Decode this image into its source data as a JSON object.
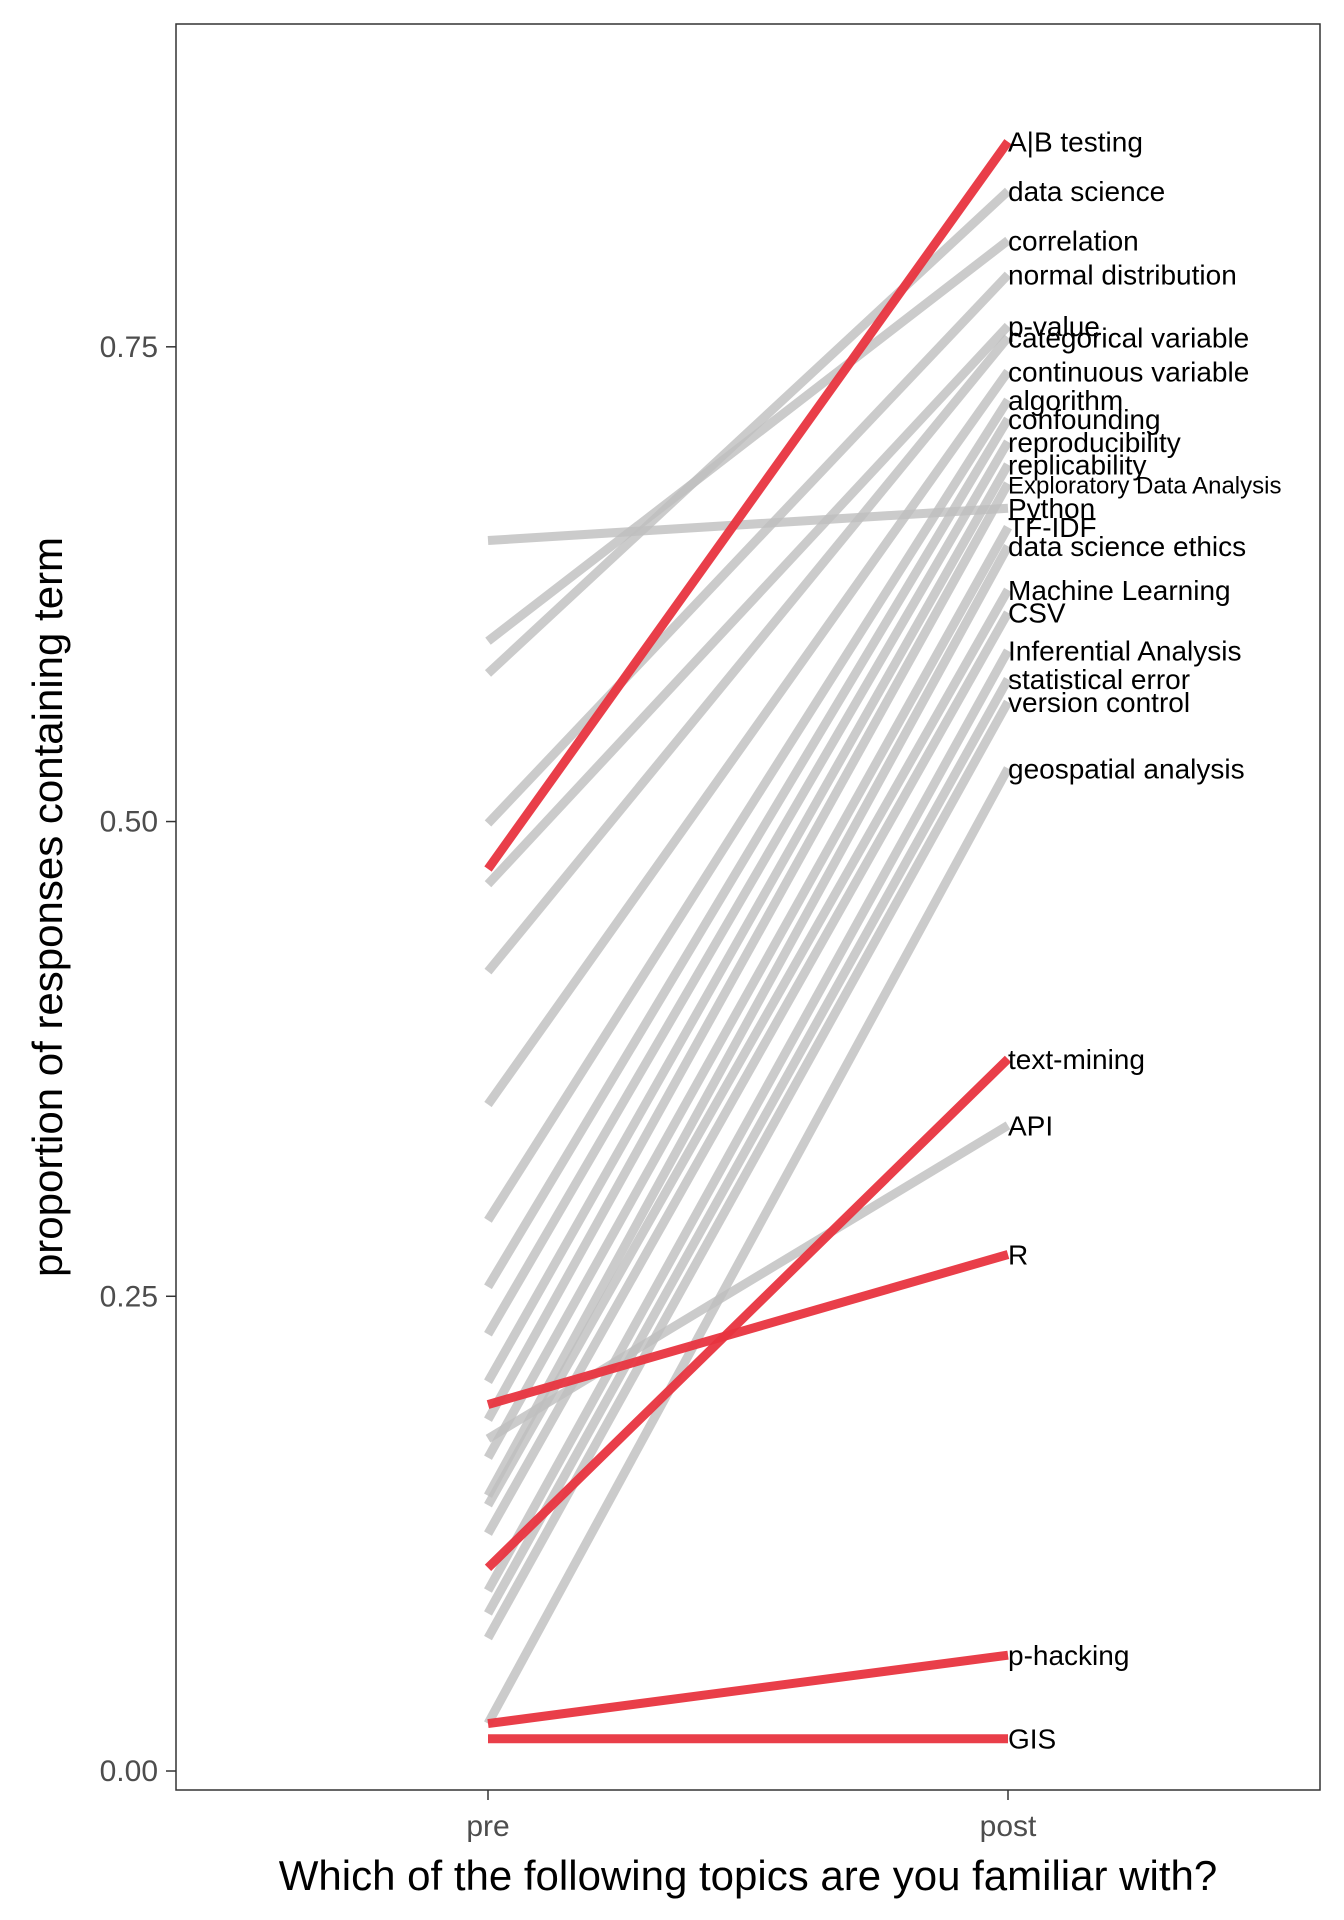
{
  "chart_data": {
    "type": "line",
    "title": "",
    "xlabel": "Which of the following topics are you familiar with?",
    "ylabel": "proportion of responses containing term",
    "categories": [
      "pre",
      "post"
    ],
    "ylim": [
      -0.01,
      0.92
    ],
    "yticks": [
      0.0,
      0.25,
      0.5,
      0.75
    ],
    "ytick_labels": [
      "0.00",
      "0.25",
      "0.50",
      "0.75"
    ],
    "grid": false,
    "legend": "none",
    "colors": {
      "highlight": "#e8343f",
      "muted": "#bebebe",
      "frame": "#333333"
    },
    "series": [
      {
        "label": "A|B testing",
        "highlight": true,
        "values": [
          0.475,
          0.858
        ]
      },
      {
        "label": "data science",
        "highlight": false,
        "values": [
          0.578,
          0.832
        ]
      },
      {
        "label": "correlation",
        "highlight": false,
        "values": [
          0.595,
          0.806
        ]
      },
      {
        "label": "normal distribution",
        "highlight": false,
        "values": [
          0.499,
          0.788
        ]
      },
      {
        "label": "p-value",
        "highlight": false,
        "values": [
          0.467,
          0.761
        ]
      },
      {
        "label": "categorical variable",
        "highlight": false,
        "values": [
          0.421,
          0.755
        ]
      },
      {
        "label": "continuous variable",
        "highlight": false,
        "values": [
          0.351,
          0.737
        ]
      },
      {
        "label": "algorithm",
        "highlight": false,
        "values": [
          0.29,
          0.722
        ]
      },
      {
        "label": "confounding",
        "highlight": false,
        "values": [
          0.255,
          0.712
        ]
      },
      {
        "label": "reproducibility",
        "highlight": false,
        "values": [
          0.23,
          0.7
        ]
      },
      {
        "label": "replicability",
        "highlight": false,
        "values": [
          0.205,
          0.688
        ]
      },
      {
        "label": "Exploratory Data Analysis",
        "highlight": false,
        "values": [
          0.185,
          0.678
        ]
      },
      {
        "label": "Python",
        "highlight": false,
        "values": [
          0.648,
          0.665
        ]
      },
      {
        "label": "TF-IDF",
        "highlight": false,
        "values": [
          0.165,
          0.655
        ]
      },
      {
        "label": "data science ethics",
        "highlight": false,
        "values": [
          0.145,
          0.645
        ]
      },
      {
        "label": "Machine Learning",
        "highlight": false,
        "values": [
          0.14,
          0.622
        ]
      },
      {
        "label": "CSV",
        "highlight": false,
        "values": [
          0.125,
          0.61
        ]
      },
      {
        "label": "Inferential Analysis",
        "highlight": false,
        "values": [
          0.095,
          0.59
        ]
      },
      {
        "label": "statistical error",
        "highlight": false,
        "values": [
          0.083,
          0.575
        ]
      },
      {
        "label": "version control",
        "highlight": false,
        "values": [
          0.07,
          0.563
        ]
      },
      {
        "label": "geospatial analysis",
        "highlight": false,
        "values": [
          0.025,
          0.528
        ]
      },
      {
        "label": "text-mining",
        "highlight": true,
        "values": [
          0.107,
          0.375
        ]
      },
      {
        "label": "API",
        "highlight": false,
        "values": [
          0.175,
          0.34
        ]
      },
      {
        "label": "R",
        "highlight": true,
        "values": [
          0.193,
          0.272
        ]
      },
      {
        "label": "p-hacking",
        "highlight": true,
        "values": [
          0.025,
          0.061
        ]
      },
      {
        "label": "GIS",
        "highlight": true,
        "values": [
          0.017,
          0.017
        ]
      }
    ]
  }
}
